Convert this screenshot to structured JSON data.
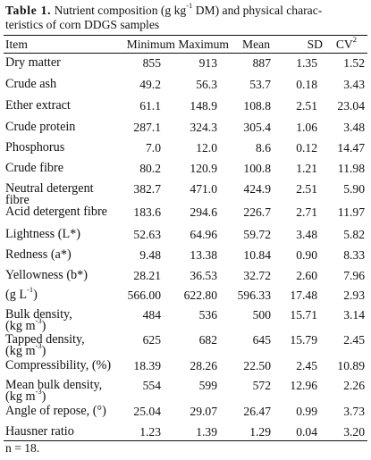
{
  "caption": {
    "label": "Table 1.",
    "line1_a": " Nutrient composition (g kg",
    "line1_sup": "-1",
    "line1_b": " DM) and physical charac-",
    "line2": "teristics of corn DDGS samples"
  },
  "header": {
    "item": "Item",
    "min": "Minimum",
    "max": "Maximum",
    "mean": "Mean",
    "sd": "SD",
    "cv": "CV",
    "cv_sup": "2"
  },
  "rows": [
    {
      "item": "Dry matter",
      "min": "855",
      "max": "913",
      "mean": "887",
      "sd": "1.35",
      "cv": "1.52"
    },
    {
      "item": "Crude ash",
      "min": "49.2",
      "max": "56.3",
      "mean": "53.7",
      "sd": "0.18",
      "cv": "3.43"
    },
    {
      "item": "Ether extract",
      "min": "61.1",
      "max": "148.9",
      "mean": "108.8",
      "sd": "2.51",
      "cv": "23.04"
    },
    {
      "item": "Crude protein",
      "min": "287.1",
      "max": "324.3",
      "mean": "305.4",
      "sd": "1.06",
      "cv": "3.48"
    },
    {
      "item": "Phosphorus",
      "min": "7.0",
      "max": "12.0",
      "mean": "8.6",
      "sd": "0.12",
      "cv": "14.47"
    },
    {
      "item": "Crude fibre",
      "min": "80.2",
      "max": "120.9",
      "mean": "100.8",
      "sd": "1.21",
      "cv": "11.98"
    },
    {
      "item_line1": "Neutral detergent",
      "item_line2": "fibre",
      "min": "382.7",
      "max": "471.0",
      "mean": "424.9",
      "sd": "2.51",
      "cv": "5.90"
    },
    {
      "item": "Acid detergent fibre",
      "min": "183.6",
      "max": "294.6",
      "mean": "226.7",
      "sd": "2.71",
      "cv": "11.97"
    },
    {
      "item": "Lightness (L*)",
      "min": "52.63",
      "max": "64.96",
      "mean": "59.72",
      "sd": "3.48",
      "cv": "5.82"
    },
    {
      "item": "Redness (a*)",
      "min": "9.48",
      "max": "13.38",
      "mean": "10.84",
      "sd": "0.90",
      "cv": "8.33"
    },
    {
      "item": "Yellowness (b*)",
      "min": "28.21",
      "max": "36.53",
      "mean": "32.72",
      "sd": "2.60",
      "cv": "7.96"
    },
    {
      "item_a": "(g L",
      "item_sup": "-1",
      "item_b": ")",
      "min": "566.00",
      "max": "622.80",
      "mean": "596.33",
      "sd": "17.48",
      "cv": "2.93"
    },
    {
      "item_line1": "Bulk density,",
      "item_line2_a": "(kg m",
      "item_line2_sup": "-3",
      "item_line2_b": ")",
      "min": "484",
      "max": "536",
      "mean": "500",
      "sd": "15.71",
      "cv": "3.14"
    },
    {
      "item_line1": "Tapped density,",
      "item_line2_a": "(kg m",
      "item_line2_sup": "-3",
      "item_line2_b": ")",
      "min": "625",
      "max": "682",
      "mean": "645",
      "sd": "15.79",
      "cv": "2.45"
    },
    {
      "item": "Compressibility, (%)",
      "min": "18.39",
      "max": "28.26",
      "mean": "22.50",
      "sd": "2.45",
      "cv": "10.89"
    },
    {
      "item_line1": "Mean bulk density,",
      "item_line2_a": "(kg m",
      "item_line2_sup": "-3",
      "item_line2_b": ")",
      "min": "554",
      "max": "599",
      "mean": "572",
      "sd": "12.96",
      "cv": "2.26"
    },
    {
      "item": "Angle of repose, (°)",
      "min": "25.04",
      "max": "29.07",
      "mean": "26.47",
      "sd": "0.99",
      "cv": "3.73"
    },
    {
      "item": "Hausner ratio",
      "min": "1.23",
      "max": "1.39",
      "mean": "1.29",
      "sd": "0.04",
      "cv": "3.20"
    }
  ],
  "footnote": "n = 18."
}
